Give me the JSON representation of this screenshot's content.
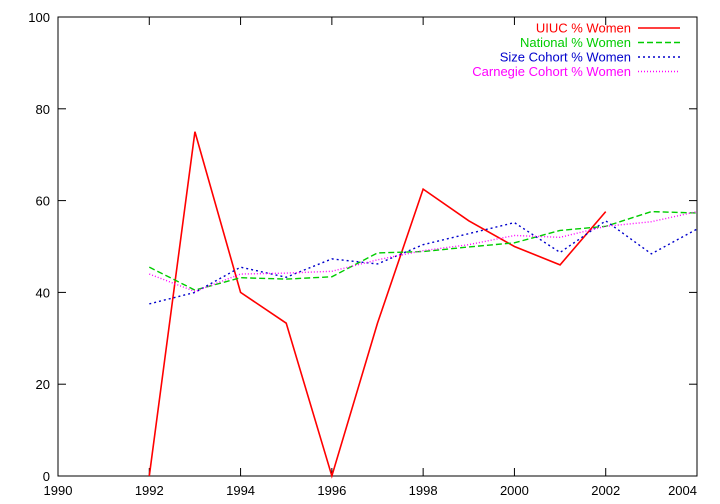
{
  "chart_data": {
    "type": "line",
    "title": "",
    "xlabel": "",
    "ylabel": "",
    "xlim": [
      1990,
      2004
    ],
    "ylim": [
      0,
      100
    ],
    "x_ticks": [
      1990,
      1992,
      1994,
      1996,
      1998,
      2000,
      2002,
      2004
    ],
    "y_ticks": [
      0,
      20,
      40,
      60,
      80,
      100
    ],
    "x_tick_labels": [
      "1990",
      "1992",
      "1994",
      "1996",
      "1998",
      "2000",
      "2002",
      "2004"
    ],
    "y_tick_labels": [
      "0",
      "20",
      "40",
      "60",
      "80",
      "100"
    ],
    "grid": false,
    "legend_position": "top-right",
    "series": [
      {
        "name": "UIUC % Women",
        "color": "#ff0000",
        "style": "solid",
        "x": [
          1992,
          1993,
          1994,
          1995,
          1996,
          1997,
          1998,
          1999,
          2000,
          2001,
          2002
        ],
        "y": [
          0,
          75,
          40,
          33.3,
          0,
          33.3,
          62.5,
          55.6,
          50,
          46,
          57.6
        ]
      },
      {
        "name": "National % Women",
        "color": "#00cc00",
        "style": "dashed",
        "x": [
          1992,
          1993,
          1994,
          1995,
          1996,
          1997,
          1998,
          1999,
          2000,
          2001,
          2002,
          2003,
          2004
        ],
        "y": [
          45.5,
          40.5,
          43.2,
          42.9,
          43.4,
          48.6,
          48.9,
          49.9,
          50.8,
          53.5,
          54.4,
          57.6,
          57.3
        ]
      },
      {
        "name": "Size Cohort % Women",
        "color": "#0000cc",
        "style": "dotted",
        "x": [
          1992,
          1993,
          1994,
          1995,
          1996,
          1997,
          1998,
          1999,
          2000,
          2001,
          2002,
          2003,
          2004
        ],
        "y": [
          37.5,
          40,
          45.5,
          43.3,
          47.3,
          46.2,
          50.4,
          52.8,
          55.2,
          48.7,
          55.6,
          48.4,
          53.8
        ]
      },
      {
        "name": "Carnegie Cohort % Women",
        "color": "#ff00ff",
        "style": "densedot",
        "x": [
          1992,
          1993,
          1994,
          1995,
          1996,
          1997,
          1998,
          1999,
          2000,
          2001,
          2002,
          2003,
          2004
        ],
        "y": [
          44,
          40.2,
          44,
          44.2,
          44.6,
          47.1,
          49.1,
          50.4,
          52.4,
          52,
          54.4,
          55.4,
          57.6
        ]
      }
    ]
  }
}
